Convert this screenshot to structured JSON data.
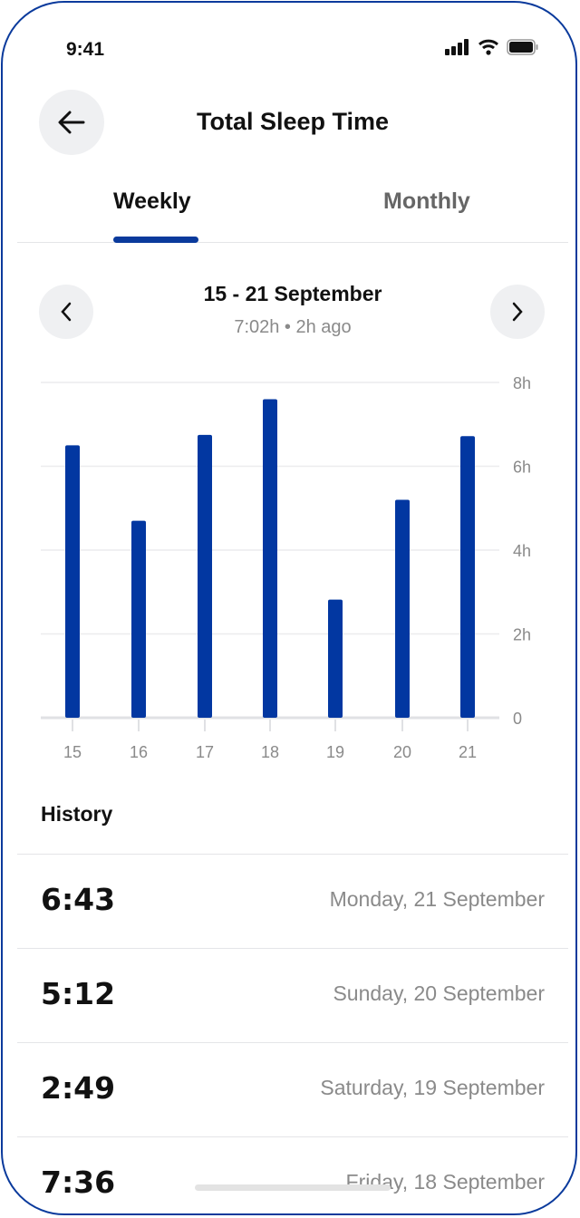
{
  "status_bar": {
    "time": "9:41",
    "icons": [
      "signal-icon",
      "wifi-icon",
      "battery-icon"
    ]
  },
  "header": {
    "title": "Total Sleep Time",
    "back_icon": "arrow-left-icon"
  },
  "tabs": [
    {
      "label": "Weekly",
      "active": true
    },
    {
      "label": "Monthly",
      "active": false
    }
  ],
  "period": {
    "range": "15 - 21 September",
    "subtitle": "7:02h • 2h ago"
  },
  "colors": {
    "accent": "#0a3a9c",
    "bar": "#0237a1"
  },
  "chart_data": {
    "type": "bar",
    "categories": [
      "15",
      "16",
      "17",
      "18",
      "19",
      "20",
      "21"
    ],
    "values": [
      6.5,
      4.7,
      6.75,
      7.6,
      2.82,
      5.2,
      6.72
    ],
    "ylim": [
      0,
      8
    ],
    "yticks": [
      "0",
      "2h",
      "4h",
      "6h",
      "8h"
    ],
    "ytick_values": [
      0,
      2,
      4,
      6,
      8
    ],
    "yaxis_position": "right",
    "grid": true
  },
  "history": {
    "title": "History",
    "items": [
      {
        "value": "6:43",
        "date": "Monday, 21 September"
      },
      {
        "value": "5:12",
        "date": "Sunday, 20 September"
      },
      {
        "value": "2:49",
        "date": "Saturday, 19 September"
      },
      {
        "value": "7:36",
        "date": "Friday, 18 September"
      }
    ]
  }
}
